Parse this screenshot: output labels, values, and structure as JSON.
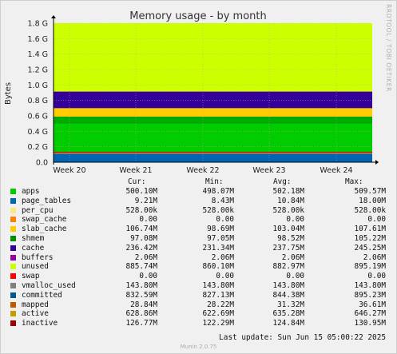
{
  "chart_data": {
    "type": "area",
    "title": "Memory usage - by month",
    "ylabel": "Bytes",
    "side_label": "RRDTOOL / TOBI OETIKER",
    "ylim": [
      0,
      1.8
    ],
    "y_ticks": [
      "0.0",
      "0.2 G",
      "0.4 G",
      "0.6 G",
      "0.8 G",
      "1.0 G",
      "1.2 G",
      "1.4 G",
      "1.6 G",
      "1.8 G"
    ],
    "x_ticks": [
      "Week 20",
      "Week 21",
      "Week 22",
      "Week 23",
      "Week 24"
    ],
    "stack_bands_gb": [
      {
        "name": "page_tables",
        "top": 0.11,
        "color": "#0066b3"
      },
      {
        "name": "swap_cache",
        "top": 0.125,
        "color": "#ff8000"
      },
      {
        "name": "slab_cache",
        "top": 0.135,
        "color": "#990000"
      },
      {
        "name": "apps",
        "top": 0.5,
        "color": "#00cc00"
      },
      {
        "name": "per_cpu",
        "top": 0.59,
        "color": "#00aa00"
      },
      {
        "name": "slab",
        "top": 0.7,
        "color": "#ffcc00"
      },
      {
        "name": "cache",
        "top": 0.91,
        "color": "#330099"
      },
      {
        "name": "buffers",
        "top": 0.915,
        "color": "#990099"
      },
      {
        "name": "unused",
        "top": 1.8,
        "color": "#ccff00"
      }
    ],
    "columns": [
      "Cur:",
      "Min:",
      "Avg:",
      "Max:"
    ],
    "series": [
      {
        "name": "apps",
        "color": "#00cc00",
        "cur": "500.10M",
        "min": "498.07M",
        "avg": "502.18M",
        "max": "509.57M"
      },
      {
        "name": "page_tables",
        "color": "#0066b3",
        "cur": "9.21M",
        "min": "8.43M",
        "avg": "10.84M",
        "max": "18.00M"
      },
      {
        "name": "per_cpu",
        "color": "#ffe680",
        "cur": "528.00k",
        "min": "528.00k",
        "avg": "528.00k",
        "max": "528.00k"
      },
      {
        "name": "swap_cache",
        "color": "#ff8000",
        "cur": "0.00",
        "min": "0.00",
        "avg": "0.00",
        "max": "0.00"
      },
      {
        "name": "slab_cache",
        "color": "#ffcc00",
        "cur": "106.74M",
        "min": "98.69M",
        "avg": "103.04M",
        "max": "107.61M"
      },
      {
        "name": "shmem",
        "color": "#008f00",
        "cur": "97.08M",
        "min": "97.05M",
        "avg": "98.52M",
        "max": "105.22M"
      },
      {
        "name": "cache",
        "color": "#330099",
        "cur": "236.42M",
        "min": "231.34M",
        "avg": "237.75M",
        "max": "245.25M"
      },
      {
        "name": "buffers",
        "color": "#990099",
        "cur": "2.06M",
        "min": "2.06M",
        "avg": "2.06M",
        "max": "2.06M"
      },
      {
        "name": "unused",
        "color": "#ccff00",
        "cur": "885.74M",
        "min": "860.10M",
        "avg": "882.97M",
        "max": "895.19M"
      },
      {
        "name": "swap",
        "color": "#ff0000",
        "cur": "0.00",
        "min": "0.00",
        "avg": "0.00",
        "max": "0.00"
      },
      {
        "name": "vmalloc_used",
        "color": "#808080",
        "cur": "143.80M",
        "min": "143.80M",
        "avg": "143.80M",
        "max": "143.80M"
      },
      {
        "name": "committed",
        "color": "#005a8c",
        "cur": "832.59M",
        "min": "827.13M",
        "avg": "844.38M",
        "max": "895.23M"
      },
      {
        "name": "mapped",
        "color": "#c05a00",
        "cur": "28.84M",
        "min": "28.22M",
        "avg": "31.32M",
        "max": "36.61M"
      },
      {
        "name": "active",
        "color": "#c79a00",
        "cur": "628.86M",
        "min": "622.69M",
        "avg": "635.28M",
        "max": "646.27M"
      },
      {
        "name": "inactive",
        "color": "#a00000",
        "cur": "126.77M",
        "min": "122.29M",
        "avg": "124.84M",
        "max": "130.95M"
      }
    ]
  },
  "footer": {
    "last_update": "Last update: Sun Jun 15 05:00:22 2025",
    "munin": "Munin 2.0.75"
  }
}
